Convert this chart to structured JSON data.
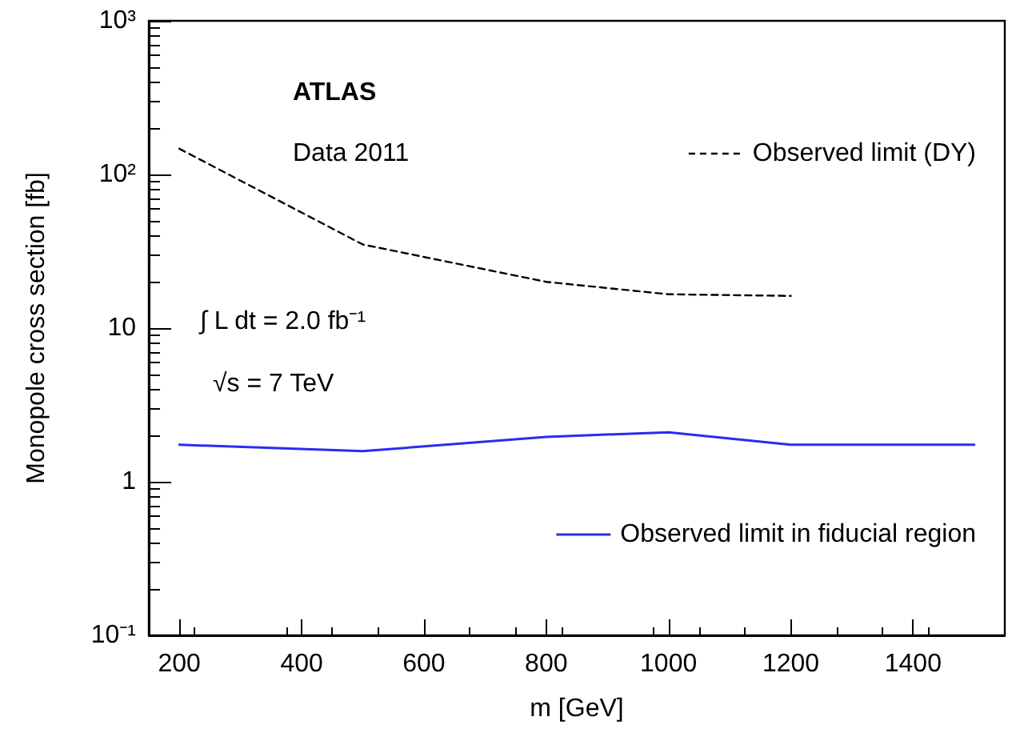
{
  "chart_data": {
    "type": "line",
    "xlabel": "m [GeV]",
    "ylabel": "Monopole cross section [fb]",
    "annotations": [
      "ATLAS",
      "Data 2011",
      "∫ L dt = 2.0 fb⁻¹",
      "√s = 7 TeV"
    ],
    "series": [
      {
        "name": "Observed limit (DY)",
        "color": "#000000",
        "line_style": "dashed",
        "x": [
          200,
          500,
          800,
          1000,
          1200
        ],
        "values": [
          147,
          35,
          20,
          16.6,
          16.2
        ]
      },
      {
        "name": "Observed limit in fiducial region",
        "color": "#2b2bf0",
        "line_style": "solid",
        "x": [
          200,
          500,
          800,
          1000,
          1200,
          1500
        ],
        "values": [
          1.74,
          1.58,
          1.96,
          2.1,
          1.74,
          1.74
        ]
      }
    ],
    "xlim": [
      150,
      1550
    ],
    "xticks": [
      200,
      400,
      600,
      800,
      1000,
      1200,
      1400
    ],
    "ylim": [
      0.1,
      1000
    ],
    "yticks": [
      {
        "value": 0.1,
        "label": "10⁻¹"
      },
      1,
      10,
      {
        "value": 100,
        "label": "10²"
      },
      {
        "value": 1000,
        "label": "10³"
      }
    ],
    "log": "y",
    "grid": false,
    "legend": "right",
    "marker": "none"
  }
}
